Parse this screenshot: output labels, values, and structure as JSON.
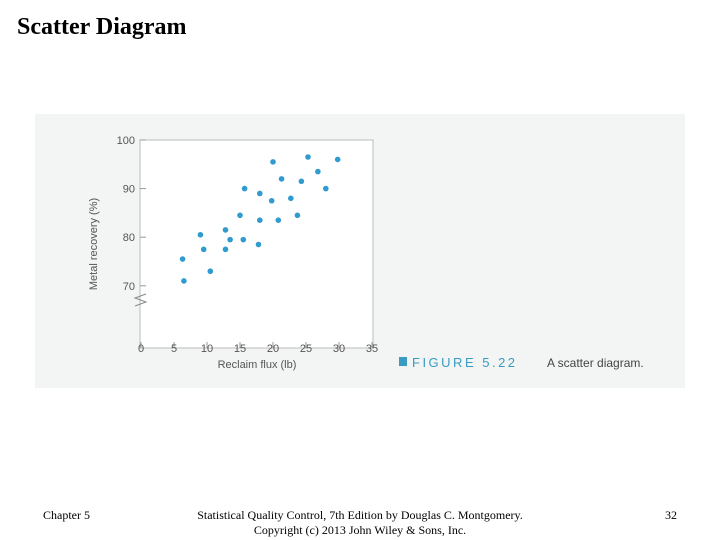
{
  "slide": {
    "title": "Scatter Diagram"
  },
  "figure": {
    "label": "FIGURE 5.22",
    "caption": "A scatter diagram."
  },
  "chart_data": {
    "type": "scatter",
    "title": "",
    "xlabel": "Reclaim flux (lb)",
    "ylabel": "Metal recovery (%)",
    "xlim": [
      0,
      35
    ],
    "ylim": [
      70,
      100
    ],
    "x_ticks": [
      0,
      5,
      10,
      15,
      20,
      25,
      30,
      35
    ],
    "y_ticks": [
      70,
      80,
      90,
      100
    ],
    "y_axis_break": true,
    "grid": false,
    "point_color": "#2f9bcf",
    "points": [
      {
        "x": 6.3,
        "y": 75.5
      },
      {
        "x": 6.5,
        "y": 71
      },
      {
        "x": 9,
        "y": 80.5
      },
      {
        "x": 9.5,
        "y": 77.5
      },
      {
        "x": 10.5,
        "y": 73
      },
      {
        "x": 12.8,
        "y": 81.5
      },
      {
        "x": 12.8,
        "y": 77.5
      },
      {
        "x": 13.5,
        "y": 79.5
      },
      {
        "x": 15,
        "y": 84.5
      },
      {
        "x": 15.5,
        "y": 79.5
      },
      {
        "x": 15.7,
        "y": 90
      },
      {
        "x": 17.8,
        "y": 78.5
      },
      {
        "x": 18,
        "y": 83.5
      },
      {
        "x": 18,
        "y": 89
      },
      {
        "x": 19.8,
        "y": 87.5
      },
      {
        "x": 20,
        "y": 95.5
      },
      {
        "x": 20.8,
        "y": 83.5
      },
      {
        "x": 21.3,
        "y": 92
      },
      {
        "x": 22.7,
        "y": 88
      },
      {
        "x": 23.7,
        "y": 84.5
      },
      {
        "x": 24.3,
        "y": 91.5
      },
      {
        "x": 25.3,
        "y": 96.5
      },
      {
        "x": 26.8,
        "y": 93.5
      },
      {
        "x": 28,
        "y": 90
      },
      {
        "x": 29.8,
        "y": 96
      }
    ]
  },
  "footer": {
    "chapter": "Chapter 5",
    "citation_line1": "Statistical Quality Control, 7th Edition by Douglas C. Montgomery.",
    "citation_line2": "Copyright (c) 2013 John Wiley & Sons, Inc.",
    "page_number": "32"
  }
}
